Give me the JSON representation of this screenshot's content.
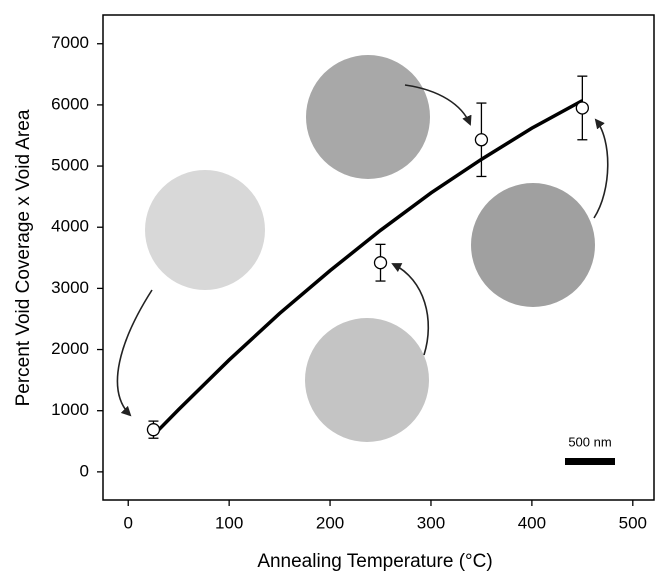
{
  "chart_data": {
    "type": "scatter",
    "xlabel": "Annealing Temperature (°C)",
    "ylabel": "Percent Void Coverage x Void Area",
    "xlim": [
      -25,
      522
    ],
    "ylim": [
      -460,
      7470
    ],
    "xticks": [
      0,
      100,
      200,
      300,
      400,
      500
    ],
    "yticks": [
      0,
      1000,
      2000,
      3000,
      4000,
      5000,
      6000,
      7000
    ],
    "series": [
      {
        "color": "#000000",
        "x": [
          25,
          250,
          350,
          450
        ],
        "values": [
          690,
          3420,
          5430,
          5950
        ],
        "errors": [
          140,
          300,
          600,
          520
        ]
      }
    ],
    "fit": {
      "color": "#000000",
      "x": [
        25,
        50,
        100,
        150,
        200,
        250,
        300,
        350,
        400,
        450
      ],
      "y": [
        600,
        1020,
        1830,
        2590,
        3290,
        3950,
        4560,
        5110,
        5620,
        6070
      ]
    },
    "annotations": [
      "500 nm"
    ]
  }
}
